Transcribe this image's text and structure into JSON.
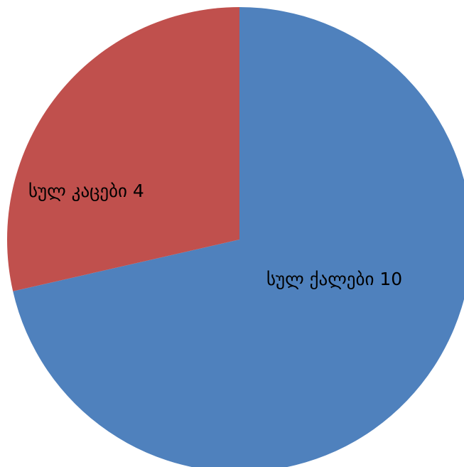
{
  "chart_data": {
    "type": "pie",
    "start_angle_deg": 0,
    "direction": "clockwise",
    "slices": [
      {
        "key": "women",
        "label": "სულ ქალები 10",
        "value": 10,
        "color": "#4f81bd"
      },
      {
        "key": "men",
        "label": "სულ კაცები 4",
        "value": 4,
        "color": "#c0504d"
      }
    ]
  }
}
